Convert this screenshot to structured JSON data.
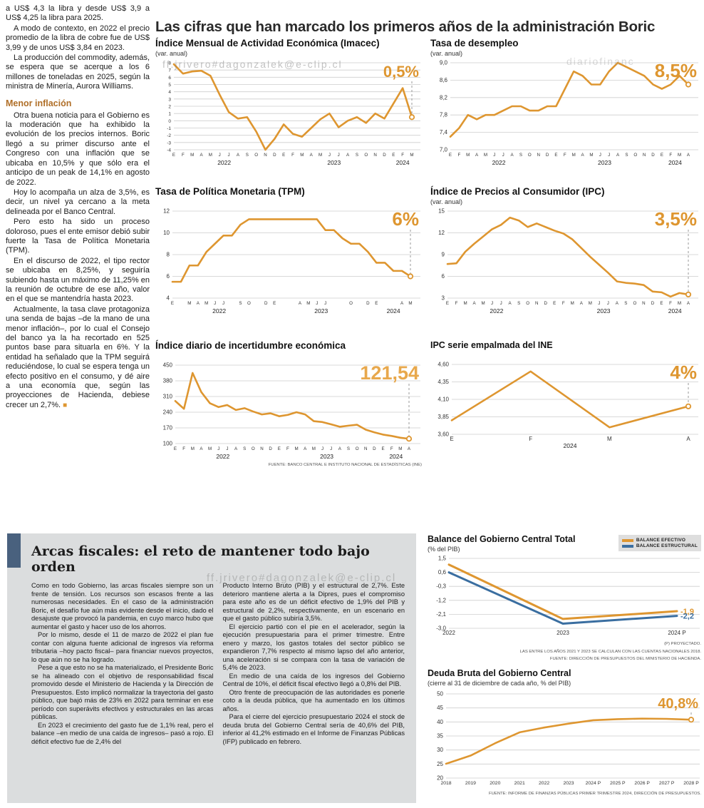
{
  "page": {
    "headline": "Las cifras que han marcado los primeros años de la administración Boric"
  },
  "watermarks": {
    "email1": "ff.jrivero#dagonzalek@e-clip.cl",
    "site": "diariofinanc",
    "email2": "ff.jrivero#dagonzalek@e-clip.cl"
  },
  "left_column": {
    "p1": "a US$ 4,3 la libra y desde US$ 3,9 a US$ 4,25 la libra para 2025.",
    "p2": "A modo de contexto, en 2022 el precio promedio de la libra de cobre fue de US$ 3,99 y de unos US$ 3,84 en 2023.",
    "p3": "La producción del commodity, además, se espera que se acerque a los 6 millones de toneladas en 2025, según la ministra de Minería, Aurora Williams.",
    "subhead": "Menor inflación",
    "p4": "Otra buena noticia para el Gobierno es la moderación que ha exhibido la evolución de los precios internos. Boric llegó a su primer discurso ante el Congreso con una inflación que se ubicaba en 10,5% y que sólo era el anticipo de un peak de 14,1% en agosto de 2022.",
    "p5": "Hoy lo acompaña un alza de 3,5%, es decir, un nivel ya cercano a la meta delineada por el Banco Central.",
    "p6": "Pero esto ha sido un proceso doloroso, pues el ente emisor debió subir fuerte la Tasa de Política Monetaria (TPM).",
    "p7": "En el discurso de 2022, el tipo rector se ubicaba en 8,25%, y seguiría subiendo hasta un máximo de 11,25% en la reunión de octubre de ese año, valor en el que se mantendría hasta 2023.",
    "p8": "Actualmente, la tasa clave protagoniza una senda de bajas –de la mano de una menor inflación–, por lo cual el Consejo del banco ya la ha recortado en 525 puntos base para situarla en 6%. Y la entidad ha señalado que la TPM seguirá reduciéndose, lo cual se espera tenga un efecto positivo en el consumo, y dé aire a una economía que, según las proyecciones de Hacienda, debiese crecer un 2,7%.",
    "end_mark": "■"
  },
  "fiscal_box": {
    "title": "Arcas fiscales: el reto de mantener todo bajo orden",
    "col1": {
      "p1": "Como en todo Gobierno, las arcas fiscales siempre son un frente de tensión. Los recursos son escasos frente a las numerosas necesidades. En el caso de la administración Boric, el desafío fue aún más evidente desde el inicio, dado el desajuste que provocó la pandemia, en cuyo marco hubo que aumentar el gasto y hacer uso de los ahorros.",
      "p2": "Por lo mismo, desde el 11 de marzo de 2022 el plan fue contar con alguna fuente adicional de ingresos vía reforma tributaria –hoy pacto fiscal– para financiar nuevos proyectos, lo que aún no se ha logrado.",
      "p3": "Pese a que esto no se ha materializado, el Presidente Boric se ha alineado con el objetivo de responsabilidad fiscal promovido desde el Ministerio de Hacienda y la Dirección de Presupuestos. Esto implicó normalizar la trayectoria del gasto público, que bajó más de 23% en 2022 para terminar en ese período con superávits efectivos y estructurales en las arcas públicas.",
      "p4": "En 2023 el crecimiento del gasto fue de 1,1% real, pero el balance –en medio de una caída de ingresos– pasó a rojo. El déficit efectivo fue de 2,4% del"
    },
    "col2": {
      "p1": "Producto Interno Bruto (PIB) y el estructural de 2,7%. Este deterioro mantiene alerta a la Dipres, pues el compromiso para este año es de un déficit efectivo de 1,9% del PIB y estructural de 2,2%, respectivamente, en un escenario en que el gasto público subiría 3,5%.",
      "p2": "El ejercicio partió con el pie en el acelerador, según la ejecución presupuestaria para el primer trimestre. Entre enero y marzo, los gastos totales del sector público se expandieron 7,7% respecto al mismo lapso del año anterior, una aceleración si se compara con la tasa de variación de 5,4% de 2023.",
      "p3": "En medio de una caída de los ingresos del Gobierno Central de 10%, el déficit fiscal efectivo llegó a 0,8% del PIB.",
      "p4": "Otro frente de preocupación de las autoridades es ponerle coto a la deuda pública, que ha aumentado en los últimos años.",
      "p5": "Para el cierre del ejercicio presupuestario 2024 el stock de deuda bruta del Gobierno Central sería de 40,6% del PIB, inferior al 41,2% estimado en el Informe de Finanzas Públicas (IFP) publicado en febrero."
    }
  },
  "chart_data": [
    {
      "type": "line",
      "title": "Índice Mensual de Actividad Económica (Imacec)",
      "subtitle": "(var. anual)",
      "big_label": "0,5%",
      "big_size": 22,
      "accent": "#DE9630",
      "ylim": [
        -4,
        8
      ],
      "yticks": [
        8,
        7,
        6,
        5,
        4,
        3,
        2,
        1,
        0,
        -1,
        -2,
        -3,
        -4
      ],
      "ytick_labels": [
        "8",
        "7",
        "6",
        "5",
        "4",
        "3",
        "2",
        "1",
        "0",
        "-1",
        "-2",
        "-3",
        "-4"
      ],
      "ytick_font": 6.5,
      "x_labels": [
        "E",
        "F",
        "M",
        "A",
        "M",
        "J",
        "J",
        "A",
        "S",
        "O",
        "N",
        "D",
        "E",
        "F",
        "M",
        "A",
        "M",
        "J",
        "J",
        "A",
        "S",
        "O",
        "N",
        "D",
        "E",
        "F",
        "M"
      ],
      "years": [
        {
          "label": "2022",
          "from": 0,
          "to": 11
        },
        {
          "label": "2023",
          "from": 12,
          "to": 23
        },
        {
          "label": "2024",
          "from": 24,
          "to": 26
        }
      ],
      "series": [
        {
          "name": "Imacec",
          "color": "#DE9630",
          "values": [
            7.8,
            6.5,
            6.8,
            6.9,
            6.2,
            3.6,
            1.2,
            0.3,
            0.5,
            -1.5,
            -4.0,
            -2.5,
            -0.5,
            -1.8,
            -2.2,
            -1.0,
            0.2,
            1.0,
            -0.9,
            0.0,
            0.5,
            -0.3,
            1.0,
            0.3,
            2.4,
            4.5,
            0.5
          ],
          "hollow_end": true
        }
      ],
      "drop_line": true,
      "margins": {
        "l": 26,
        "r": 14,
        "t": 6,
        "b": 24
      }
    },
    {
      "type": "line",
      "title": "Tasa de desempleo",
      "subtitle": "(var. anual)",
      "big_label": "8,5%",
      "big_size": 26,
      "accent": "#DE9630",
      "ylim": [
        7.0,
        9.0
      ],
      "yticks": [
        9.0,
        8.6,
        8.2,
        7.8,
        7.4,
        7.0
      ],
      "ytick_labels": [
        "9,0",
        "8,6",
        "8,2",
        "7,8",
        "7,4",
        "7,0"
      ],
      "x_labels": [
        "E",
        "F",
        "M",
        "A",
        "M",
        "J",
        "J",
        "A",
        "S",
        "O",
        "N",
        "D",
        "E",
        "F",
        "M",
        "A",
        "M",
        "J",
        "J",
        "A",
        "S",
        "O",
        "N",
        "D",
        "E",
        "F",
        "M",
        "A"
      ],
      "years": [
        {
          "label": "2022",
          "from": 0,
          "to": 11
        },
        {
          "label": "2023",
          "from": 12,
          "to": 23
        },
        {
          "label": "2024",
          "from": 24,
          "to": 27
        }
      ],
      "series": [
        {
          "name": "Tasa de desempleo",
          "color": "#DE9630",
          "values": [
            7.3,
            7.5,
            7.8,
            7.7,
            7.8,
            7.8,
            7.9,
            8.0,
            8.0,
            7.9,
            7.9,
            8.0,
            8.0,
            8.4,
            8.8,
            8.7,
            8.5,
            8.5,
            8.8,
            9.0,
            8.9,
            8.8,
            8.7,
            8.5,
            8.4,
            8.5,
            8.7,
            8.5
          ],
          "hollow_end": true
        }
      ],
      "drop_line": true,
      "margins": {
        "l": 28,
        "r": 16,
        "t": 6,
        "b": 24
      }
    },
    {
      "type": "line",
      "title": "Tasa de Política Monetaria (TPM)",
      "big_label": "6%",
      "big_size": 26,
      "accent": "#DE9630",
      "ylim": [
        4,
        12
      ],
      "yticks": [
        12,
        10,
        8,
        6,
        4
      ],
      "ytick_labels": [
        "12",
        "10",
        "8",
        "6",
        "4"
      ],
      "x_labels": [
        "E",
        "",
        "M",
        "A",
        "M",
        "J",
        "J",
        "",
        "S",
        "O",
        "",
        "D",
        "E",
        "",
        "",
        "A",
        "M",
        "J",
        "J",
        "",
        "",
        "O",
        "",
        "D",
        "E",
        "",
        "",
        "A",
        "M"
      ],
      "years": [
        {
          "label": "2022",
          "from": 0,
          "to": 11
        },
        {
          "label": "2023",
          "from": 12,
          "to": 23
        },
        {
          "label": "2024",
          "from": 24,
          "to": 28
        }
      ],
      "series": [
        {
          "name": "TPM",
          "color": "#DE9630",
          "values": [
            5.5,
            5.5,
            7.0,
            7.0,
            8.25,
            9.0,
            9.75,
            9.75,
            10.75,
            11.25,
            11.25,
            11.25,
            11.25,
            11.25,
            11.25,
            11.25,
            11.25,
            11.25,
            10.25,
            10.25,
            9.5,
            9.0,
            9.0,
            8.25,
            7.25,
            7.25,
            6.5,
            6.5,
            6.0
          ],
          "hollow_end": true
        }
      ],
      "drop_line": true,
      "margins": {
        "l": 24,
        "r": 16,
        "t": 6,
        "b": 24
      }
    },
    {
      "type": "line",
      "title": "Índice de Precios al Consumidor (IPC)",
      "subtitle": "(var. anual)",
      "big_label": "3,5%",
      "big_size": 26,
      "accent": "#DE9630",
      "ylim": [
        3,
        15
      ],
      "yticks": [
        15,
        12,
        9,
        6,
        3
      ],
      "ytick_labels": [
        "15",
        "12",
        "9",
        "6",
        "3"
      ],
      "x_labels": [
        "E",
        "F",
        "M",
        "A",
        "M",
        "J",
        "J",
        "A",
        "S",
        "O",
        "N",
        "D",
        "E",
        "F",
        "M",
        "A",
        "M",
        "J",
        "J",
        "A",
        "S",
        "O",
        "N",
        "D",
        "E",
        "F",
        "M",
        "A"
      ],
      "years": [
        {
          "label": "2022",
          "from": 0,
          "to": 11
        },
        {
          "label": "2023",
          "from": 12,
          "to": 23
        },
        {
          "label": "2024",
          "from": 24,
          "to": 27
        }
      ],
      "series": [
        {
          "name": "IPC",
          "color": "#DE9630",
          "values": [
            7.7,
            7.8,
            9.4,
            10.5,
            11.5,
            12.5,
            13.1,
            14.1,
            13.7,
            12.8,
            13.3,
            12.8,
            12.3,
            11.9,
            11.1,
            9.9,
            8.7,
            7.6,
            6.5,
            5.3,
            5.1,
            5.0,
            4.8,
            3.9,
            3.8,
            3.2,
            3.7,
            3.5
          ],
          "hollow_end": true
        }
      ],
      "drop_line": true,
      "margins": {
        "l": 24,
        "r": 16,
        "t": 6,
        "b": 24
      }
    },
    {
      "type": "line",
      "title": "Índice diario de incertidumbre económica",
      "big_label": "121,54",
      "big_size": 27,
      "accent": "#E8A84C",
      "ylim": [
        100,
        450
      ],
      "yticks": [
        450,
        380,
        310,
        240,
        170,
        100
      ],
      "ytick_labels": [
        "450",
        "380",
        "310",
        "240",
        "170",
        "100"
      ],
      "x_labels": [
        "E",
        "F",
        "M",
        "A",
        "M",
        "J",
        "J",
        "A",
        "S",
        "O",
        "N",
        "D",
        "E",
        "F",
        "M",
        "A",
        "M",
        "J",
        "J",
        "A",
        "S",
        "O",
        "N",
        "D",
        "E",
        "F",
        "M",
        "A"
      ],
      "years": [
        {
          "label": "2022",
          "from": 0,
          "to": 11
        },
        {
          "label": "2023",
          "from": 12,
          "to": 23
        },
        {
          "label": "2024",
          "from": 24,
          "to": 27
        }
      ],
      "series": [
        {
          "name": "Incertidumbre económica",
          "color": "#DE9630",
          "values": [
            290,
            255,
            415,
            330,
            280,
            263,
            272,
            250,
            258,
            243,
            230,
            235,
            222,
            228,
            240,
            230,
            200,
            196,
            186,
            175,
            180,
            184,
            162,
            150,
            140,
            134,
            126,
            121.54
          ],
          "hollow_end": true
        }
      ],
      "drop_line": true,
      "margins": {
        "l": 28,
        "r": 18,
        "t": 6,
        "b": 24
      },
      "note": "FUENTE: BANCO CENTRAL E INSTITUTO NACIONAL DE ESTADÍSTICAS (INE)"
    },
    {
      "type": "line",
      "title": "IPC serie empalmada del INE",
      "big_label": "4%",
      "big_size": 26,
      "accent": "#DE9630",
      "ylim": [
        3.6,
        4.6
      ],
      "yticks": [
        4.6,
        4.35,
        4.1,
        3.85,
        3.6
      ],
      "ytick_labels": [
        "4,60",
        "4,35",
        "4,10",
        "3,85",
        "3,60"
      ],
      "x_labels": [
        "E",
        "F",
        "M",
        "A"
      ],
      "xlabel_font": 8,
      "years": [
        {
          "label": "2024",
          "from": 0,
          "to": 3
        }
      ],
      "series": [
        {
          "name": "IPC empalmada",
          "color": "#DE9630",
          "values": [
            3.8,
            4.5,
            3.7,
            4.0
          ],
          "hollow_end": true
        }
      ],
      "drop_line": true,
      "margins": {
        "l": 30,
        "r": 16,
        "t": 6,
        "b": 22
      }
    },
    {
      "type": "line",
      "title": "Balance del Gobierno Central Total",
      "subtitle": "(% del PIB)",
      "ylim": [
        -3.0,
        1.5
      ],
      "yticks": [
        1.5,
        0.6,
        -0.3,
        -1.2,
        -2.1,
        -3.0
      ],
      "ytick_labels": [
        "1,5",
        "0,6",
        "-0,3",
        "-1,2",
        "-2,1",
        "-3,0"
      ],
      "x_labels": [
        "2022",
        "2023",
        "2024 P"
      ],
      "xlabel_font": 8,
      "series": [
        {
          "name": "BALANCE EFECTIVO",
          "color": "#DE9630",
          "values": [
            1.1,
            -2.4,
            -1.9
          ],
          "width": 3,
          "end_label": "-1,9"
        },
        {
          "name": "BALANCE ESTRUCTURAL",
          "color": "#3A6EA0",
          "values": [
            0.6,
            -2.7,
            -2.2
          ],
          "width": 3,
          "end_label": "-2,2"
        }
      ],
      "legend": [
        {
          "label": "BALANCE EFECTIVO",
          "color": "#DE9630"
        },
        {
          "label": "BALANCE ESTRUCTURAL",
          "color": "#3A6EA0"
        }
      ],
      "legend_position": "top-right",
      "drop_line": false,
      "margins": {
        "l": 30,
        "r": 34,
        "t": 6,
        "b": 16
      },
      "notes": [
        "(P) PROYECTADO.",
        "LAS ENTRE LOS AÑOS 2021 Y 2023 SE CALCULAN  CON LAS CUENTAS NACIONALES 2018.",
        "FUENTE: DIRECCIÓN DE PRESUPUESTOS DEL MINISTERIO DE HACIENDA."
      ]
    },
    {
      "type": "line",
      "title": "Deuda Bruta del Gobierno Central",
      "subtitle": "(cierre al 31 de diciembre de cada año, % del PIB)",
      "big_label": "40,8%",
      "big_size": 20,
      "accent": "#DE9630",
      "ylim": [
        20,
        50
      ],
      "yticks": [
        50,
        45,
        40,
        35,
        30,
        25,
        20
      ],
      "ytick_labels": [
        "50",
        "45",
        "40",
        "35",
        "30",
        "25",
        "20"
      ],
      "x_labels": [
        "2018",
        "2019",
        "2020",
        "2021",
        "2022",
        "2023",
        "2024 P",
        "2025 P",
        "2026 P",
        "2027 P",
        "2028 P"
      ],
      "xlabel_font": 6.8,
      "series": [
        {
          "name": "Deuda bruta",
          "color": "#DE9630",
          "values": [
            25.1,
            28.0,
            32.4,
            36.3,
            38.0,
            39.4,
            40.6,
            41.0,
            41.2,
            41.1,
            40.8
          ],
          "hollow_end": true
        }
      ],
      "drop_line": true,
      "margins": {
        "l": 26,
        "r": 14,
        "t": 8,
        "b": 16
      },
      "note": "FUENTE: INFORME DE FINANZAS PÚBLICAS PRIMER TRIMESTRE 2024, DIRECCIÓN DE PRESUPUESTOS."
    }
  ]
}
